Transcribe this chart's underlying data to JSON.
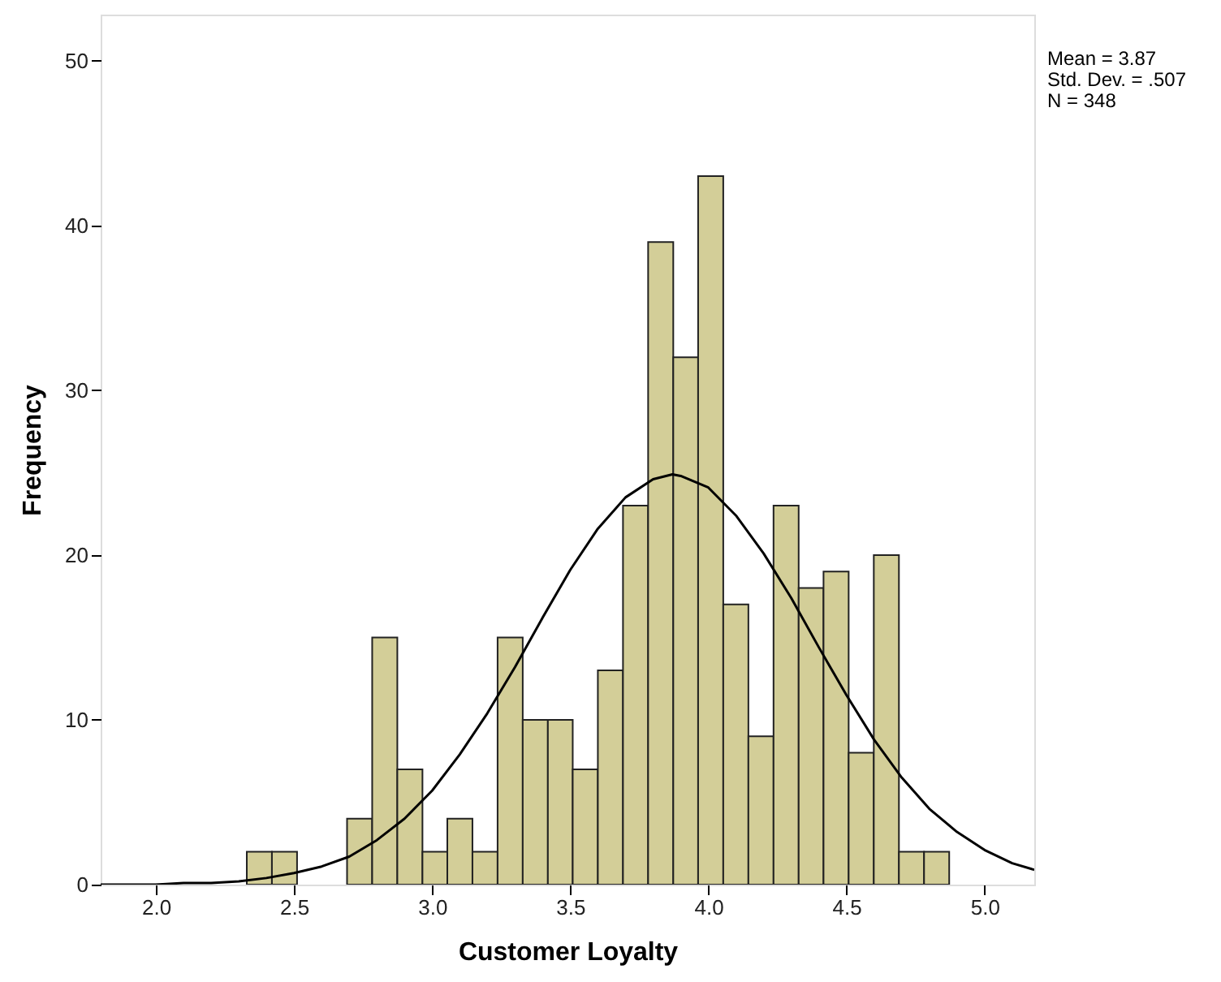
{
  "chart_data": {
    "type": "histogram",
    "xlabel": "Customer Loyalty",
    "ylabel": "Frequency",
    "annotations": [
      "Mean = 3.87",
      "Std. Dev. = .507",
      "N = 348"
    ],
    "bins": [
      2.329,
      2.42,
      2.511,
      2.601,
      2.692,
      2.783,
      2.874,
      2.965,
      3.055,
      3.146,
      3.237,
      3.328,
      3.419,
      3.509,
      3.6,
      3.691,
      3.782,
      3.873,
      3.963,
      4.054,
      4.145,
      4.236,
      4.327,
      4.417,
      4.508,
      4.599,
      4.69,
      4.781,
      4.872
    ],
    "values": [
      2,
      2,
      0,
      0,
      4,
      15,
      7,
      2,
      4,
      2,
      15,
      10,
      10,
      7,
      13,
      23,
      39,
      32,
      43,
      17,
      9,
      23,
      18,
      19,
      8,
      20,
      2,
      2
    ],
    "color": "#d3ce98",
    "series": [
      {
        "type": "line",
        "color": "#000000",
        "x": [
          1.8,
          1.9,
          2.0,
          2.1,
          2.2,
          2.3,
          2.4,
          2.5,
          2.6,
          2.7,
          2.8,
          2.9,
          3.0,
          3.1,
          3.2,
          3.3,
          3.4,
          3.5,
          3.6,
          3.7,
          3.8,
          3.87,
          3.9,
          4.0,
          4.1,
          4.2,
          4.3,
          4.4,
          4.5,
          4.6,
          4.7,
          4.8,
          4.9,
          5.0,
          5.1,
          5.18
        ],
        "values": [
          0,
          0,
          0,
          0.1,
          0.1,
          0.2,
          0.4,
          0.7,
          1.1,
          1.7,
          2.7,
          4,
          5.7,
          7.9,
          10.4,
          13.2,
          16.2,
          19.1,
          21.6,
          23.5,
          24.6,
          24.9,
          24.8,
          24.1,
          22.4,
          20.1,
          17.4,
          14.4,
          11.5,
          8.8,
          6.5,
          4.6,
          3.2,
          2.1,
          1.3,
          0.9
        ]
      }
    ],
    "xlim": [
      1.8,
      5.18
    ],
    "xticks": [
      {
        "value": 2,
        "label": "2.0"
      },
      2.5,
      {
        "value": 3,
        "label": "3.0"
      },
      3.5,
      {
        "value": 4,
        "label": "4.0"
      },
      4.5,
      {
        "value": 5,
        "label": "5.0"
      }
    ],
    "ylim": [
      0,
      52.8
    ],
    "yticks": [
      0,
      10,
      20,
      30,
      40,
      50
    ],
    "grid": false
  }
}
